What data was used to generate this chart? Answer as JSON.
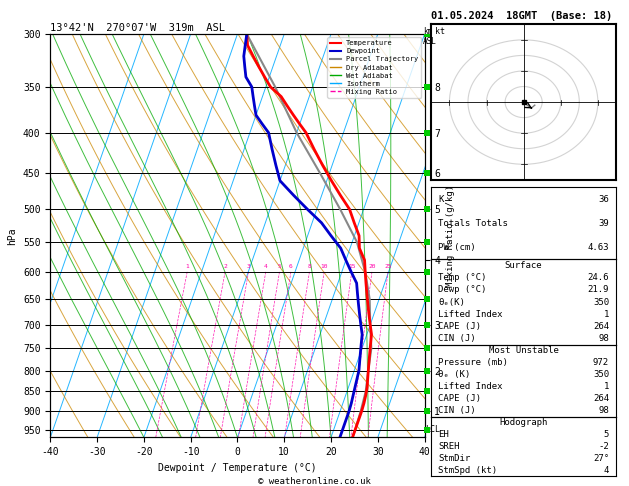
{
  "title_left": "13°42'N  270°07'W  319m  ASL",
  "title_right": "01.05.2024  18GMT  (Base: 18)",
  "xlabel": "Dewpoint / Temperature (°C)",
  "ylabel_left": "hPa",
  "color_temp": "#ff0000",
  "color_dewp": "#0000cc",
  "color_parcel": "#888888",
  "color_dry_adiabat": "#cc8800",
  "color_wet_adiabat": "#00aa00",
  "color_isotherm": "#00aaff",
  "color_mixing": "#ff00aa",
  "color_bg": "#ffffff",
  "pressure_levels": [
    300,
    350,
    400,
    450,
    500,
    550,
    600,
    650,
    700,
    750,
    800,
    850,
    900,
    950
  ],
  "pressure_temp": [
    300,
    310,
    320,
    330,
    340,
    350,
    360,
    370,
    380,
    390,
    400,
    420,
    440,
    460,
    480,
    500,
    520,
    540,
    560,
    580,
    600,
    620,
    640,
    660,
    680,
    700,
    720,
    740,
    760,
    780,
    800,
    820,
    840,
    860,
    880,
    900,
    920,
    940,
    960,
    972
  ],
  "temperature": [
    -28,
    -27,
    -25,
    -23,
    -21,
    -19,
    -16,
    -14,
    -12,
    -10,
    -8,
    -5,
    -2,
    1,
    4,
    7,
    9,
    11,
    12,
    14,
    15,
    16,
    17,
    18,
    19,
    20,
    21,
    21.5,
    22,
    22.5,
    23,
    23.5,
    24,
    24.3,
    24.5,
    24.6,
    24.6,
    24.6,
    24.6,
    24.6
  ],
  "dewpoint": [
    -28,
    -27.5,
    -27,
    -26,
    -25,
    -23,
    -22,
    -21,
    -20,
    -18,
    -16,
    -14,
    -12,
    -10,
    -6,
    -2,
    2,
    5,
    8,
    10,
    12,
    14,
    15,
    16,
    17,
    18,
    19,
    19.5,
    20,
    20.5,
    21,
    21.2,
    21.4,
    21.6,
    21.8,
    21.9,
    21.9,
    21.9,
    21.9,
    21.9
  ],
  "parcel_pressures": [
    300,
    350,
    400,
    450,
    500,
    550,
    600,
    650,
    700,
    750,
    800,
    850,
    900,
    950,
    972
  ],
  "parcel_t": [
    -28,
    -18,
    -10,
    -2,
    5,
    11,
    15,
    18,
    20,
    22,
    23,
    24,
    24.4,
    24.6,
    24.6
  ],
  "lcl_pressure": 950,
  "stats": {
    "K": 36,
    "Totals Totals": 39,
    "PW (cm)": 4.63,
    "Surface_Temp": 24.6,
    "Surface_Dewp": 21.9,
    "Surface_thetae": 350,
    "Surface_LI": 1,
    "Surface_CAPE": 264,
    "Surface_CIN": 98,
    "MU_Pressure": 972,
    "MU_thetae": 350,
    "MU_LI": 1,
    "MU_CAPE": 264,
    "MU_CIN": 98,
    "Hodo_EH": 5,
    "Hodo_SREH": -2,
    "Hodo_StmDir": 27,
    "Hodo_StmSpd": 4
  }
}
